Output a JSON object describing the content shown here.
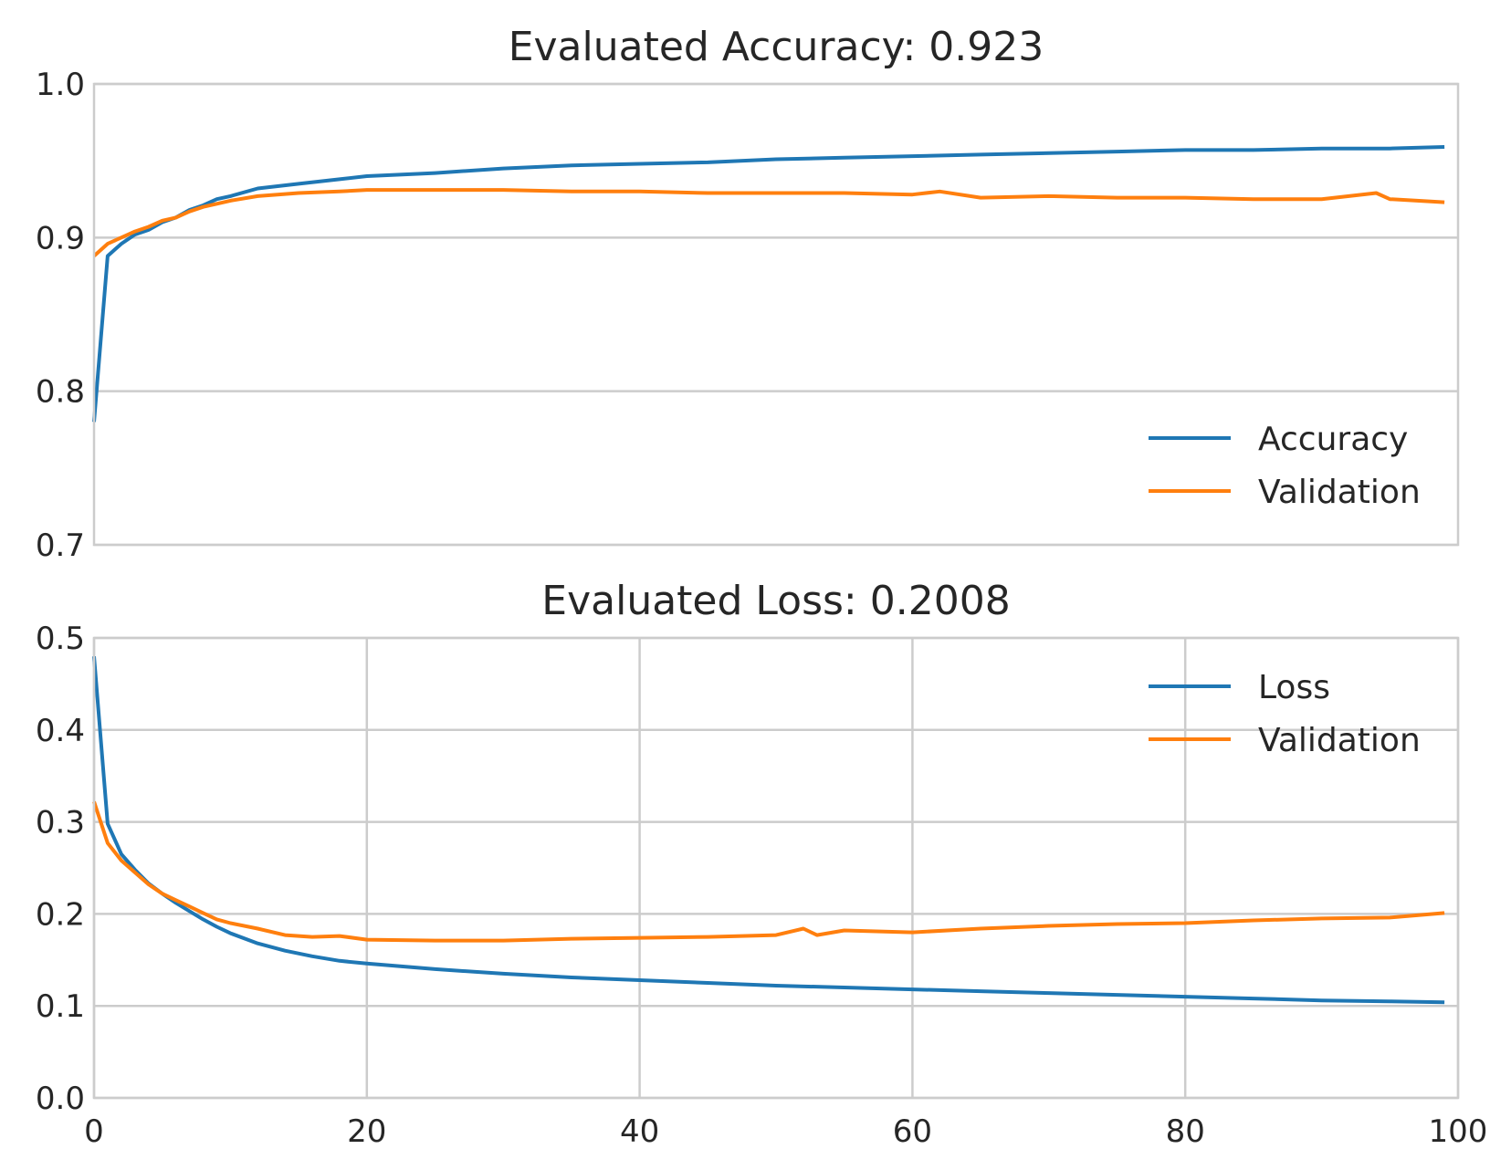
{
  "chart_data": [
    {
      "type": "line",
      "title": "Evaluated Accuracy: 0.923",
      "xlabel": "",
      "ylabel": "",
      "xlim": [
        0,
        100
      ],
      "ylim": [
        0.7,
        1.0
      ],
      "yticks": [
        0.7,
        0.8,
        0.9,
        1.0
      ],
      "ytick_labels": [
        "0.7",
        "0.8",
        "0.9",
        "1.0"
      ],
      "xticks_shown": false,
      "xgrid": false,
      "ygrid": true,
      "legend_position": "lower-right",
      "series": [
        {
          "name": "Accuracy",
          "color": "#1f77b4",
          "x": [
            0,
            1,
            2,
            3,
            4,
            5,
            6,
            7,
            8,
            9,
            10,
            12,
            15,
            18,
            20,
            25,
            30,
            35,
            40,
            45,
            50,
            55,
            60,
            65,
            70,
            75,
            80,
            85,
            90,
            95,
            99
          ],
          "y": [
            0.78,
            0.888,
            0.896,
            0.902,
            0.905,
            0.91,
            0.913,
            0.918,
            0.921,
            0.925,
            0.927,
            0.932,
            0.935,
            0.938,
            0.94,
            0.942,
            0.945,
            0.947,
            0.948,
            0.949,
            0.951,
            0.952,
            0.953,
            0.954,
            0.955,
            0.956,
            0.957,
            0.957,
            0.958,
            0.958,
            0.959
          ]
        },
        {
          "name": "Validation",
          "color": "#ff7f0e",
          "x": [
            0,
            1,
            2,
            3,
            4,
            5,
            6,
            7,
            8,
            9,
            10,
            12,
            15,
            18,
            20,
            25,
            30,
            35,
            40,
            45,
            50,
            55,
            60,
            62,
            65,
            70,
            75,
            80,
            85,
            90,
            94,
            95,
            97,
            99
          ],
          "y": [
            0.888,
            0.896,
            0.9,
            0.904,
            0.907,
            0.911,
            0.913,
            0.917,
            0.92,
            0.922,
            0.924,
            0.927,
            0.929,
            0.93,
            0.931,
            0.931,
            0.931,
            0.93,
            0.93,
            0.929,
            0.929,
            0.929,
            0.928,
            0.93,
            0.926,
            0.927,
            0.926,
            0.926,
            0.925,
            0.925,
            0.929,
            0.925,
            0.924,
            0.923
          ]
        }
      ]
    },
    {
      "type": "line",
      "title": "Evaluated Loss: 0.2008",
      "xlabel": "",
      "ylabel": "",
      "xlim": [
        0,
        100
      ],
      "ylim": [
        0.0,
        0.5
      ],
      "xticks": [
        0,
        20,
        40,
        60,
        80,
        100
      ],
      "xtick_labels": [
        "0",
        "20",
        "40",
        "60",
        "80",
        "100"
      ],
      "yticks": [
        0.0,
        0.1,
        0.2,
        0.3,
        0.4,
        0.5
      ],
      "ytick_labels": [
        "0.0",
        "0.1",
        "0.2",
        "0.3",
        "0.4",
        "0.5"
      ],
      "xticks_shown": true,
      "xgrid": true,
      "ygrid": true,
      "legend_position": "upper-right",
      "series": [
        {
          "name": "Loss",
          "color": "#1f77b4",
          "x": [
            0,
            1,
            2,
            3,
            4,
            5,
            6,
            7,
            8,
            9,
            10,
            12,
            14,
            16,
            18,
            20,
            25,
            30,
            35,
            40,
            45,
            50,
            55,
            60,
            65,
            70,
            75,
            80,
            85,
            90,
            95,
            99
          ],
          "y": [
            0.48,
            0.298,
            0.265,
            0.248,
            0.233,
            0.222,
            0.212,
            0.203,
            0.194,
            0.186,
            0.179,
            0.168,
            0.16,
            0.154,
            0.149,
            0.146,
            0.14,
            0.135,
            0.131,
            0.128,
            0.125,
            0.122,
            0.12,
            0.118,
            0.116,
            0.114,
            0.112,
            0.11,
            0.108,
            0.106,
            0.105,
            0.104
          ]
        },
        {
          "name": "Validation",
          "color": "#ff7f0e",
          "x": [
            0,
            1,
            2,
            3,
            4,
            5,
            6,
            7,
            8,
            9,
            10,
            12,
            14,
            16,
            18,
            20,
            25,
            30,
            35,
            40,
            45,
            50,
            52,
            53,
            55,
            60,
            65,
            70,
            75,
            80,
            85,
            90,
            95,
            99
          ],
          "y": [
            0.322,
            0.277,
            0.258,
            0.245,
            0.232,
            0.222,
            0.215,
            0.208,
            0.201,
            0.194,
            0.19,
            0.184,
            0.177,
            0.175,
            0.176,
            0.172,
            0.171,
            0.171,
            0.173,
            0.174,
            0.175,
            0.177,
            0.184,
            0.177,
            0.182,
            0.18,
            0.184,
            0.187,
            0.189,
            0.19,
            0.193,
            0.195,
            0.196,
            0.201
          ]
        }
      ]
    }
  ]
}
